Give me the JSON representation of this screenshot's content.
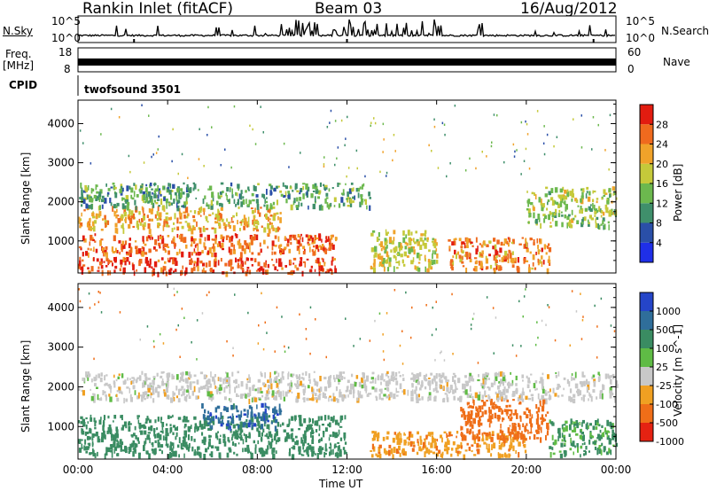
{
  "header": {
    "station": "Rankin Inlet (fitACF)",
    "beam": "Beam 03",
    "date": "16/Aug/2012"
  },
  "left_labels": {
    "nsky": "N.Sky",
    "freq": "Freq.",
    "mhz": "[MHz]",
    "cpid": "CPID"
  },
  "right_labels": {
    "nsearch": "N.Search",
    "nave": "Nave"
  },
  "cpid_name": "twofsound 3501",
  "chart_data": [
    {
      "type": "line",
      "panel": "noise",
      "left_ticks": [
        "10^5",
        "10^0"
      ],
      "right_ticks": [
        "10^5",
        "10^0"
      ],
      "scale": "log"
    },
    {
      "type": "line",
      "panel": "frequency",
      "left_ticks": [
        "18",
        "8"
      ],
      "right_ticks": [
        "60",
        "0"
      ]
    },
    {
      "type": "heatmap",
      "panel": "power",
      "ylabel": "Slant Range [km]",
      "yticks": [
        "1000",
        "2000",
        "3000",
        "4000"
      ],
      "ylim": [
        180,
        4600
      ],
      "colorbar_label": "Power [dB]",
      "colorbar_ticks": [
        "4",
        "8",
        "12",
        "16",
        "20",
        "24",
        "28"
      ],
      "colors": [
        "#1f2fe8",
        "#2a4fa8",
        "#3f8f6b",
        "#6cb84e",
        "#c5c93a",
        "#f0a22a",
        "#ef6a1e",
        "#e21c10"
      ],
      "bands": [
        {
          "hours": [
            0,
            11.5
          ],
          "range": [
            200,
            600
          ],
          "level": 28
        },
        {
          "hours": [
            0,
            11.5
          ],
          "range": [
            700,
            1200
          ],
          "level": 26
        },
        {
          "hours": [
            0,
            9
          ],
          "range": [
            1300,
            1900
          ],
          "level": 22
        },
        {
          "hours": [
            0,
            13
          ],
          "range": [
            1900,
            2500
          ],
          "level": 12
        },
        {
          "hours": [
            13,
            16
          ],
          "range": [
            300,
            1300
          ],
          "level": 18
        },
        {
          "hours": [
            16.5,
            21
          ],
          "range": [
            300,
            1100
          ],
          "level": 24
        },
        {
          "hours": [
            20,
            24
          ],
          "range": [
            1400,
            2400
          ],
          "level": 16
        }
      ]
    },
    {
      "type": "heatmap",
      "panel": "velocity",
      "ylabel": "Slant Range [km]",
      "yticks": [
        "1000",
        "2000",
        "3000",
        "4000"
      ],
      "ylim": [
        180,
        4600
      ],
      "xticks": [
        "00:00",
        "04:00",
        "08:00",
        "12:00",
        "16:00",
        "20:00",
        "00:00"
      ],
      "xlabel": "Time UT",
      "colorbar_label": "Velocity [m s^-1]",
      "colorbar_ticks": [
        "1000",
        "500",
        "100",
        "25",
        "-25",
        "-100",
        "-500",
        "-1000"
      ],
      "colors": [
        "#2545c8",
        "#2f6e9a",
        "#3a8c62",
        "#5fbb45",
        "#c8c8c8",
        "#f0a022",
        "#ef6e18",
        "#e52212"
      ],
      "bands": [
        {
          "hours": [
            0,
            12
          ],
          "range": [
            300,
            1300
          ],
          "level": 250
        },
        {
          "hours": [
            5.5,
            9
          ],
          "range": [
            1000,
            1600
          ],
          "level": 800
        },
        {
          "hours": [
            0,
            24
          ],
          "range": [
            1700,
            2400
          ],
          "level": 0
        },
        {
          "hours": [
            13,
            20
          ],
          "range": [
            300,
            900
          ],
          "level": -80
        },
        {
          "hours": [
            17,
            21
          ],
          "range": [
            700,
            1700
          ],
          "level": -300
        },
        {
          "hours": [
            21,
            24
          ],
          "range": [
            300,
            1200
          ],
          "level": 120
        }
      ]
    }
  ]
}
